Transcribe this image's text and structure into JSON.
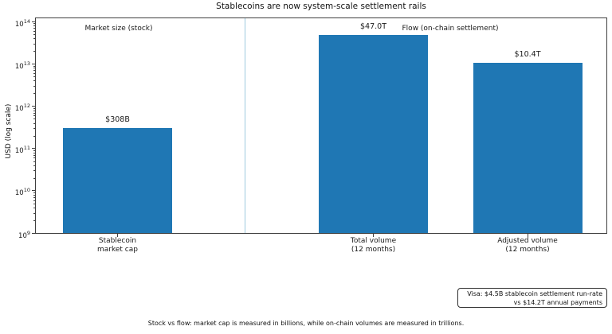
{
  "chart_data": {
    "type": "bar",
    "title": "Stablecoins are now system-scale settlement rails",
    "ylabel": "USD (log scale)",
    "yscale": "log",
    "ylim": [
      1000000000,
      100000000000000
    ],
    "y_tick_exponents": [
      9,
      10,
      11,
      12,
      13,
      14
    ],
    "grid": false,
    "legend": false,
    "categories": [
      [
        "Stablecoin",
        "market cap"
      ],
      [
        "Total volume",
        "(12 months)"
      ],
      [
        "Adjusted volume",
        "(12 months)"
      ]
    ],
    "values": [
      308000000000,
      47000000000000,
      10400000000000
    ],
    "bar_labels": [
      "$308B",
      "$47.0T",
      "$10.4T"
    ],
    "group_labels": [
      "Market size (stock)",
      "Flow (on-chain settlement)"
    ],
    "annotation": {
      "line1": "Visa: $4.5B stablecoin settlement run-rate",
      "line2": "vs $14.2T annual payments"
    },
    "caption": "Stock vs flow: market cap is measured in billions, while on-chain volumes are measured in trillions.",
    "colors": {
      "bar": "#1f77b4",
      "divider": "#9ecadf",
      "spine": "#3f3f3f",
      "text": "#1a1a1a"
    }
  }
}
